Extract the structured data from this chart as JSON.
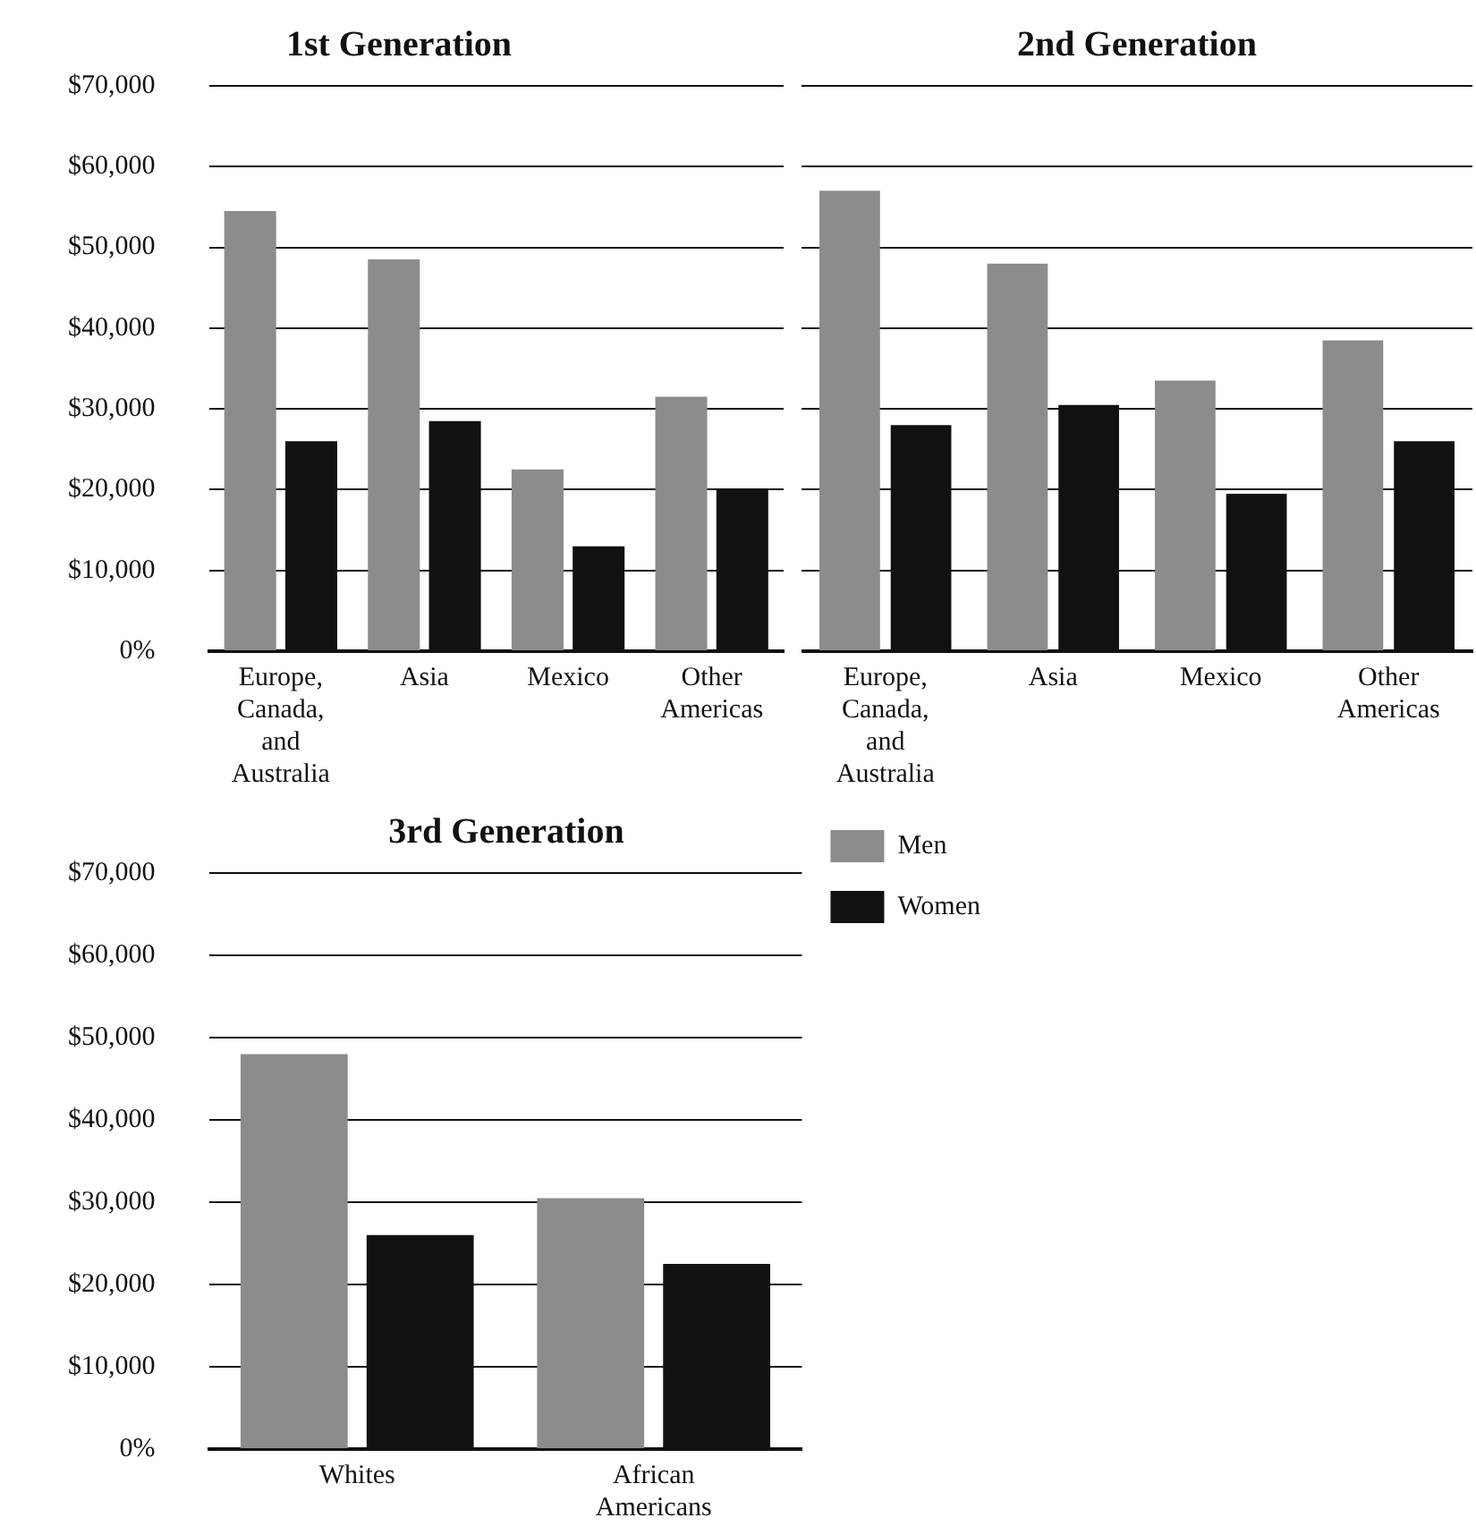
{
  "chart_data": [
    {
      "type": "bar",
      "title": "1st Generation",
      "categories": [
        "Europe, Canada, and Australia",
        "Asia",
        "Mexico",
        "Other Americas"
      ],
      "series": [
        {
          "color": "#8c8c8c",
          "values": [
            54500,
            48500,
            22500,
            31500
          ]
        },
        {
          "color": "#111111",
          "values": [
            26000,
            28500,
            13000,
            20000
          ]
        }
      ],
      "ylim": [
        0,
        70000
      ],
      "yticks": [
        {
          "value": 0,
          "label": "0%"
        },
        {
          "value": 10000,
          "label": "$10,000"
        },
        {
          "value": 20000,
          "label": "$20,000"
        },
        {
          "value": 30000,
          "label": "$30,000"
        },
        {
          "value": 40000,
          "label": "$40,000"
        },
        {
          "value": 50000,
          "label": "$50,000"
        },
        {
          "value": 60000,
          "label": "$60,000"
        },
        {
          "value": 70000,
          "label": "$70,000"
        }
      ],
      "grid": "y"
    },
    {
      "type": "bar",
      "title": "2nd Generation",
      "categories": [
        "Europe, Canada, and Australia",
        "Asia",
        "Mexico",
        "Other Americas"
      ],
      "series": [
        {
          "color": "#8c8c8c",
          "values": [
            57000,
            48000,
            33500,
            38500
          ]
        },
        {
          "color": "#111111",
          "values": [
            28000,
            30500,
            19500,
            26000
          ]
        }
      ],
      "ylim": [
        0,
        70000
      ],
      "yticks": [
        {
          "value": 0,
          "label": null
        },
        {
          "value": 10000,
          "label": null
        },
        {
          "value": 20000,
          "label": null
        },
        {
          "value": 30000,
          "label": null
        },
        {
          "value": 40000,
          "label": null
        },
        {
          "value": 50000,
          "label": null
        },
        {
          "value": 60000,
          "label": null
        },
        {
          "value": 70000,
          "label": null
        }
      ],
      "grid": "y",
      "tick_labels": "x"
    },
    {
      "type": "bar",
      "title": "3rd Generation",
      "categories": [
        "Whites",
        "African Americans"
      ],
      "series": [
        {
          "name": "Men",
          "color": "#8c8c8c",
          "values": [
            48000,
            30500
          ]
        },
        {
          "name": "Women",
          "color": "#111111",
          "values": [
            26000,
            22500
          ]
        }
      ],
      "ylim": [
        0,
        70000
      ],
      "yticks": [
        {
          "value": 0,
          "label": "0%"
        },
        {
          "value": 10000,
          "label": "$10,000"
        },
        {
          "value": 20000,
          "label": "$20,000"
        },
        {
          "value": 30000,
          "label": "$30,000"
        },
        {
          "value": 40000,
          "label": "$40,000"
        },
        {
          "value": 50000,
          "label": "$50,000"
        },
        {
          "value": 60000,
          "label": "$60,000"
        },
        {
          "value": 70000,
          "label": "$70,000"
        }
      ],
      "grid": "y",
      "legend": "right"
    }
  ]
}
